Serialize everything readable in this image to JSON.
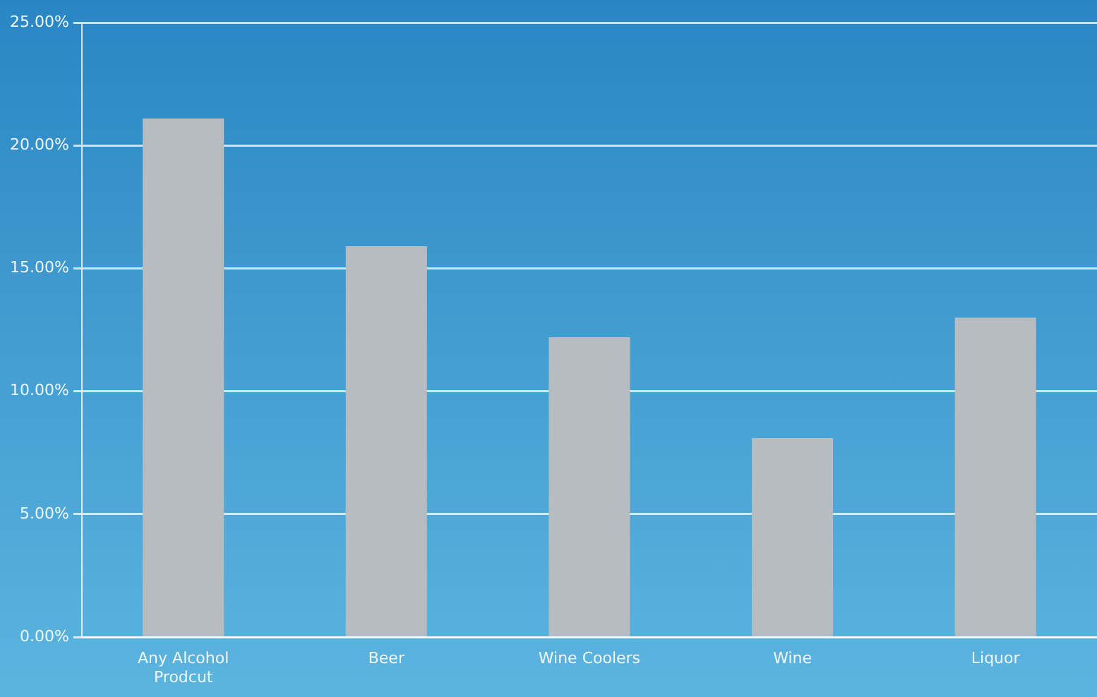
{
  "chart_data": {
    "type": "bar",
    "categories": [
      "Any Alcohol Prodcut",
      "Beer",
      "Wine Coolers",
      "Wine",
      "Liquor"
    ],
    "values": [
      21.1,
      15.9,
      12.2,
      8.1,
      13.0
    ],
    "color": "#b6bcc0",
    "ylim": [
      0,
      25
    ],
    "yticks": [
      {
        "value": 0,
        "label": "0.00%"
      },
      {
        "value": 5,
        "label": "5.00%"
      },
      {
        "value": 10,
        "label": "10.00%"
      },
      {
        "value": 15,
        "label": "15.00%"
      },
      {
        "value": 20,
        "label": "20.00%"
      },
      {
        "value": 25,
        "label": "25.00%"
      }
    ],
    "grid": "y"
  }
}
